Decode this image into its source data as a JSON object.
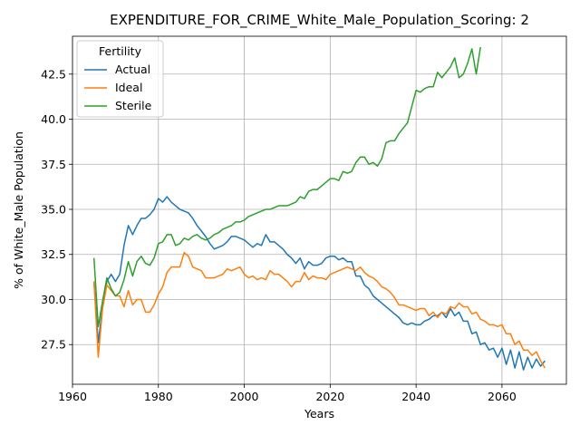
{
  "chart_data": {
    "type": "line",
    "title": "EXPENDITURE_FOR_CRIME_White_Male_Population_Scoring: 2",
    "xlabel": "Years",
    "ylabel": "% of White_Male Population",
    "xlim": [
      1960,
      2075
    ],
    "ylim": [
      25.3,
      44.6
    ],
    "xticks": [
      1960,
      1980,
      2000,
      2020,
      2040,
      2060
    ],
    "yticks": [
      27.5,
      30.0,
      32.5,
      35.0,
      37.5,
      40.0,
      42.5
    ],
    "ytick_labels": [
      "27.5",
      "30.0",
      "32.5",
      "35.0",
      "37.5",
      "40.0",
      "42.5"
    ],
    "grid": true,
    "legend": {
      "title": "Fertility",
      "placement": "upper-left"
    },
    "series": [
      {
        "name": "Actual",
        "color": "#1f77b4",
        "points": [
          [
            1965,
            31.0
          ],
          [
            1966,
            27.6
          ],
          [
            1967,
            29.6
          ],
          [
            1968,
            31.0
          ],
          [
            1969,
            31.4
          ],
          [
            1970,
            31.0
          ],
          [
            1971,
            31.4
          ],
          [
            1972,
            33.0
          ],
          [
            1973,
            34.1
          ],
          [
            1974,
            33.6
          ],
          [
            1975,
            34.1
          ],
          [
            1976,
            34.5
          ],
          [
            1977,
            34.5
          ],
          [
            1978,
            34.7
          ],
          [
            1979,
            35.0
          ],
          [
            1980,
            35.6
          ],
          [
            1981,
            35.4
          ],
          [
            1982,
            35.7
          ],
          [
            1983,
            35.4
          ],
          [
            1984,
            35.2
          ],
          [
            1985,
            35.0
          ],
          [
            1986,
            34.9
          ],
          [
            1987,
            34.8
          ],
          [
            1988,
            34.5
          ],
          [
            1989,
            34.1
          ],
          [
            1990,
            33.8
          ],
          [
            1991,
            33.5
          ],
          [
            1992,
            33.1
          ],
          [
            1993,
            32.8
          ],
          [
            1994,
            32.9
          ],
          [
            1995,
            33.0
          ],
          [
            1996,
            33.2
          ],
          [
            1997,
            33.5
          ],
          [
            1998,
            33.5
          ],
          [
            1999,
            33.4
          ],
          [
            2000,
            33.3
          ],
          [
            2001,
            33.1
          ],
          [
            2002,
            32.9
          ],
          [
            2003,
            33.1
          ],
          [
            2004,
            33.0
          ],
          [
            2005,
            33.6
          ],
          [
            2006,
            33.2
          ],
          [
            2007,
            33.2
          ],
          [
            2008,
            33.0
          ],
          [
            2009,
            32.8
          ],
          [
            2010,
            32.5
          ],
          [
            2011,
            32.3
          ],
          [
            2012,
            32.0
          ],
          [
            2013,
            32.3
          ],
          [
            2014,
            31.7
          ],
          [
            2015,
            32.1
          ],
          [
            2016,
            31.9
          ],
          [
            2017,
            31.9
          ],
          [
            2018,
            32.0
          ],
          [
            2019,
            32.3
          ],
          [
            2020,
            32.4
          ],
          [
            2021,
            32.4
          ],
          [
            2022,
            32.2
          ],
          [
            2023,
            32.3
          ],
          [
            2024,
            32.1
          ],
          [
            2025,
            32.1
          ],
          [
            2026,
            31.3
          ],
          [
            2027,
            31.3
          ],
          [
            2028,
            30.8
          ],
          [
            2029,
            30.6
          ],
          [
            2030,
            30.2
          ],
          [
            2031,
            30.0
          ],
          [
            2032,
            29.8
          ],
          [
            2033,
            29.6
          ],
          [
            2034,
            29.4
          ],
          [
            2035,
            29.2
          ],
          [
            2036,
            29.0
          ],
          [
            2037,
            28.7
          ],
          [
            2038,
            28.6
          ],
          [
            2039,
            28.7
          ],
          [
            2040,
            28.6
          ],
          [
            2041,
            28.6
          ],
          [
            2042,
            28.8
          ],
          [
            2043,
            28.9
          ],
          [
            2044,
            29.1
          ],
          [
            2045,
            29.1
          ],
          [
            2046,
            29.3
          ],
          [
            2047,
            29.0
          ],
          [
            2048,
            29.5
          ],
          [
            2049,
            29.1
          ],
          [
            2050,
            29.3
          ],
          [
            2051,
            28.8
          ],
          [
            2052,
            28.8
          ],
          [
            2053,
            28.1
          ],
          [
            2054,
            28.2
          ],
          [
            2055,
            27.5
          ],
          [
            2056,
            27.6
          ],
          [
            2057,
            27.2
          ],
          [
            2058,
            27.3
          ],
          [
            2059,
            26.8
          ],
          [
            2060,
            27.3
          ],
          [
            2061,
            26.4
          ],
          [
            2062,
            27.2
          ],
          [
            2063,
            26.2
          ],
          [
            2064,
            27.1
          ],
          [
            2065,
            26.1
          ],
          [
            2066,
            26.8
          ],
          [
            2067,
            26.2
          ],
          [
            2068,
            26.7
          ],
          [
            2069,
            26.3
          ],
          [
            2070,
            26.6
          ]
        ]
      },
      {
        "name": "Ideal",
        "color": "#ff7f0e",
        "points": [
          [
            1965,
            31.0
          ],
          [
            1966,
            26.8
          ],
          [
            1967,
            29.5
          ],
          [
            1968,
            30.8
          ],
          [
            1969,
            30.5
          ],
          [
            1970,
            30.2
          ],
          [
            1971,
            30.2
          ],
          [
            1972,
            29.6
          ],
          [
            1973,
            30.5
          ],
          [
            1974,
            29.7
          ],
          [
            1975,
            30.0
          ],
          [
            1976,
            30.0
          ],
          [
            1977,
            29.3
          ],
          [
            1978,
            29.3
          ],
          [
            1979,
            29.7
          ],
          [
            1980,
            30.3
          ],
          [
            1981,
            30.7
          ],
          [
            1982,
            31.5
          ],
          [
            1983,
            31.8
          ],
          [
            1984,
            31.8
          ],
          [
            1985,
            31.8
          ],
          [
            1986,
            32.6
          ],
          [
            1987,
            32.4
          ],
          [
            1988,
            31.8
          ],
          [
            1989,
            31.7
          ],
          [
            1990,
            31.6
          ],
          [
            1991,
            31.2
          ],
          [
            1992,
            31.2
          ],
          [
            1993,
            31.2
          ],
          [
            1994,
            31.3
          ],
          [
            1995,
            31.4
          ],
          [
            1996,
            31.7
          ],
          [
            1997,
            31.6
          ],
          [
            1998,
            31.7
          ],
          [
            1999,
            31.8
          ],
          [
            2000,
            31.4
          ],
          [
            2001,
            31.2
          ],
          [
            2002,
            31.3
          ],
          [
            2003,
            31.1
          ],
          [
            2004,
            31.2
          ],
          [
            2005,
            31.1
          ],
          [
            2006,
            31.6
          ],
          [
            2007,
            31.4
          ],
          [
            2008,
            31.4
          ],
          [
            2009,
            31.2
          ],
          [
            2010,
            31.0
          ],
          [
            2011,
            30.7
          ],
          [
            2012,
            31.0
          ],
          [
            2013,
            31.0
          ],
          [
            2014,
            31.5
          ],
          [
            2015,
            31.1
          ],
          [
            2016,
            31.3
          ],
          [
            2017,
            31.2
          ],
          [
            2018,
            31.2
          ],
          [
            2019,
            31.1
          ],
          [
            2020,
            31.4
          ],
          [
            2021,
            31.5
          ],
          [
            2022,
            31.6
          ],
          [
            2023,
            31.7
          ],
          [
            2024,
            31.8
          ],
          [
            2025,
            31.7
          ],
          [
            2026,
            31.6
          ],
          [
            2027,
            31.8
          ],
          [
            2028,
            31.5
          ],
          [
            2029,
            31.3
          ],
          [
            2030,
            31.2
          ],
          [
            2031,
            31.0
          ],
          [
            2032,
            30.7
          ],
          [
            2033,
            30.6
          ],
          [
            2034,
            30.4
          ],
          [
            2035,
            30.1
          ],
          [
            2036,
            29.7
          ],
          [
            2037,
            29.7
          ],
          [
            2038,
            29.6
          ],
          [
            2039,
            29.5
          ],
          [
            2040,
            29.4
          ],
          [
            2041,
            29.5
          ],
          [
            2042,
            29.5
          ],
          [
            2043,
            29.1
          ],
          [
            2044,
            29.3
          ],
          [
            2045,
            29.0
          ],
          [
            2046,
            29.3
          ],
          [
            2047,
            29.2
          ],
          [
            2048,
            29.6
          ],
          [
            2049,
            29.5
          ],
          [
            2050,
            29.8
          ],
          [
            2051,
            29.6
          ],
          [
            2052,
            29.6
          ],
          [
            2053,
            29.2
          ],
          [
            2054,
            29.3
          ],
          [
            2055,
            28.9
          ],
          [
            2056,
            28.8
          ],
          [
            2057,
            28.6
          ],
          [
            2058,
            28.6
          ],
          [
            2059,
            28.5
          ],
          [
            2060,
            28.6
          ],
          [
            2061,
            28.1
          ],
          [
            2062,
            28.1
          ],
          [
            2063,
            27.5
          ],
          [
            2064,
            27.7
          ],
          [
            2065,
            27.2
          ],
          [
            2066,
            27.2
          ],
          [
            2067,
            26.9
          ],
          [
            2068,
            27.1
          ],
          [
            2069,
            26.6
          ],
          [
            2070,
            26.2
          ]
        ]
      },
      {
        "name": "Sterile",
        "color": "#2ca02c",
        "points": [
          [
            1965,
            32.3
          ],
          [
            1966,
            28.5
          ],
          [
            1967,
            29.9
          ],
          [
            1968,
            31.2
          ],
          [
            1969,
            30.6
          ],
          [
            1970,
            30.2
          ],
          [
            1971,
            30.4
          ],
          [
            1972,
            31.1
          ],
          [
            1973,
            32.1
          ],
          [
            1974,
            31.3
          ],
          [
            1975,
            32.1
          ],
          [
            1976,
            32.4
          ],
          [
            1977,
            32.0
          ],
          [
            1978,
            31.9
          ],
          [
            1979,
            32.3
          ],
          [
            1980,
            33.1
          ],
          [
            1981,
            33.2
          ],
          [
            1982,
            33.6
          ],
          [
            1983,
            33.6
          ],
          [
            1984,
            33.0
          ],
          [
            1985,
            33.1
          ],
          [
            1986,
            33.4
          ],
          [
            1987,
            33.3
          ],
          [
            1988,
            33.5
          ],
          [
            1989,
            33.6
          ],
          [
            1990,
            33.4
          ],
          [
            1991,
            33.3
          ],
          [
            1992,
            33.4
          ],
          [
            1993,
            33.6
          ],
          [
            1994,
            33.7
          ],
          [
            1995,
            33.9
          ],
          [
            1996,
            34.0
          ],
          [
            1997,
            34.1
          ],
          [
            1998,
            34.3
          ],
          [
            1999,
            34.3
          ],
          [
            2000,
            34.4
          ],
          [
            2001,
            34.6
          ],
          [
            2002,
            34.7
          ],
          [
            2003,
            34.8
          ],
          [
            2004,
            34.9
          ],
          [
            2005,
            35.0
          ],
          [
            2006,
            35.0
          ],
          [
            2007,
            35.1
          ],
          [
            2008,
            35.2
          ],
          [
            2009,
            35.2
          ],
          [
            2010,
            35.2
          ],
          [
            2011,
            35.3
          ],
          [
            2012,
            35.4
          ],
          [
            2013,
            35.7
          ],
          [
            2014,
            35.6
          ],
          [
            2015,
            36.0
          ],
          [
            2016,
            36.1
          ],
          [
            2017,
            36.1
          ],
          [
            2018,
            36.3
          ],
          [
            2019,
            36.5
          ],
          [
            2020,
            36.7
          ],
          [
            2021,
            36.7
          ],
          [
            2022,
            36.6
          ],
          [
            2023,
            37.1
          ],
          [
            2024,
            37.0
          ],
          [
            2025,
            37.1
          ],
          [
            2026,
            37.6
          ],
          [
            2027,
            37.9
          ],
          [
            2028,
            37.9
          ],
          [
            2029,
            37.5
          ],
          [
            2030,
            37.6
          ],
          [
            2031,
            37.4
          ],
          [
            2032,
            37.8
          ],
          [
            2033,
            38.7
          ],
          [
            2034,
            38.8
          ],
          [
            2035,
            38.8
          ],
          [
            2036,
            39.2
          ],
          [
            2037,
            39.5
          ],
          [
            2038,
            39.8
          ],
          [
            2039,
            40.7
          ],
          [
            2040,
            41.6
          ],
          [
            2041,
            41.5
          ],
          [
            2042,
            41.7
          ],
          [
            2043,
            41.8
          ],
          [
            2044,
            41.8
          ],
          [
            2045,
            42.6
          ],
          [
            2046,
            42.3
          ],
          [
            2047,
            42.6
          ],
          [
            2048,
            42.9
          ],
          [
            2049,
            43.4
          ],
          [
            2050,
            42.3
          ],
          [
            2051,
            42.5
          ],
          [
            2052,
            43.1
          ],
          [
            2053,
            43.9
          ],
          [
            2054,
            42.5
          ],
          [
            2055,
            44.0
          ]
        ]
      }
    ]
  }
}
